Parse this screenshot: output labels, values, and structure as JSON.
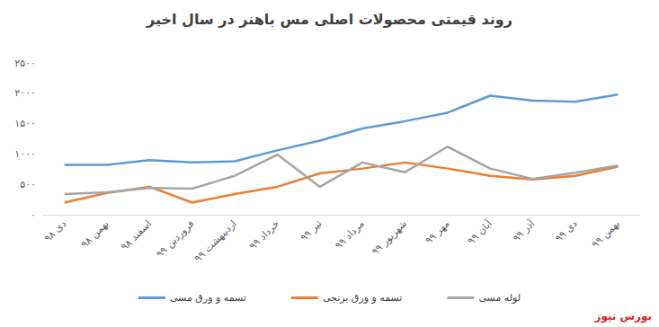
{
  "chart_data": {
    "type": "line",
    "title": "روند قیمتی محصولات اصلی مس باهنر در سال اخیر",
    "categories": [
      "دی ۹۸",
      "بهمن ۹۸",
      "اسفند ۹۸",
      "فروردین ۹۹",
      "اردیبهشت ۹۹",
      "خرداد ۹۹",
      "تیر ۹۹",
      "مرداد ۹۹",
      "شهریور ۹۹",
      "مهر ۹۹",
      "آبان ۹۹",
      "آذر ۹۹",
      "دی ۹۹",
      "بهمن ۹۹"
    ],
    "series": [
      {
        "name": "تسمه و ورق مسی",
        "color": "#5b9bd5",
        "values": [
          820,
          820,
          900,
          860,
          880,
          1060,
          1220,
          1420,
          1540,
          1680,
          1960,
          1880,
          1860,
          1980
        ]
      },
      {
        "name": "تسمه و ورق برنجی",
        "color": "#ed7d31",
        "values": [
          200,
          360,
          460,
          200,
          340,
          460,
          680,
          760,
          860,
          760,
          640,
          580,
          640,
          790
        ]
      },
      {
        "name": "لوله مسی",
        "color": "#a5a5a5",
        "values": [
          340,
          370,
          440,
          430,
          640,
          990,
          460,
          860,
          700,
          1120,
          760,
          590,
          690,
          810
        ]
      }
    ],
    "ylim": [
      0,
      2500
    ],
    "yticks": [
      {
        "value": 0,
        "label": "۰"
      },
      {
        "value": 500,
        "label": "۵۰۰"
      },
      {
        "value": 1000,
        "label": "۱۰۰۰"
      },
      {
        "value": 1500,
        "label": "۱۵۰۰"
      },
      {
        "value": 2000,
        "label": "۲۰۰۰"
      },
      {
        "value": 2500,
        "label": "۲۵۰۰"
      }
    ],
    "grid": false,
    "legend": "bottom",
    "annotations": [
      "بورس نیوز"
    ]
  }
}
